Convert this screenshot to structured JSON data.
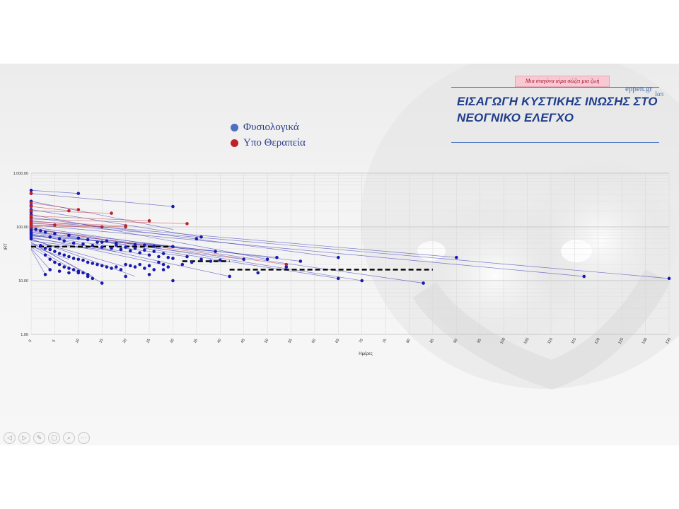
{
  "slide": {
    "tagline": "Μια σταγόνα αίμα σώζει μια ζωή",
    "brand": "eppen.gr",
    "brand_sub": "Ιαπ",
    "title_line1": "ΕΙΣΑΓΩΓΗ ΚΥΣΤΙΚΗΣ ΙΝΩΣΗΣ ΣΤΟ",
    "title_line2": "ΝΕΟΓΝΙΚΟ ΕΛΕΓΧΟ"
  },
  "legend": [
    {
      "label": "Φυσιολογικά",
      "color": "#4b6fc2"
    },
    {
      "label": "Υπο Θεραπεία",
      "color": "#c0202a"
    }
  ],
  "nav": {
    "icons": [
      "back-icon",
      "forward-icon",
      "pen-icon",
      "copy-icon",
      "zoom-icon",
      "more-icon"
    ],
    "glyphs": [
      "◁",
      "▷",
      "✎",
      "▢",
      "⌕",
      "⋯"
    ]
  },
  "chart_data": {
    "type": "scatter",
    "title": "",
    "xlabel": "Ημέρες",
    "ylabel": "IRT",
    "xlim": [
      0,
      135
    ],
    "ylim": [
      1,
      1000
    ],
    "yscale": "log",
    "x_ticks": [
      0,
      5,
      10,
      15,
      20,
      25,
      30,
      35,
      40,
      45,
      50,
      55,
      60,
      65,
      70,
      75,
      80,
      85,
      90,
      95,
      100,
      105,
      110,
      115,
      120,
      125,
      130,
      135
    ],
    "y_ticks": [
      1,
      10,
      100,
      1000
    ],
    "y_tick_labels": [
      "1.00",
      "10.00",
      "100.00",
      "1.000.00"
    ],
    "grid": true,
    "series": [
      {
        "name": "Φυσιολογικά",
        "color": "#1a1ab0",
        "lines": [
          [
            [
              0,
              480
            ],
            [
              10,
              420
            ]
          ],
          [
            [
              0,
              420
            ],
            [
              30,
              240
            ]
          ],
          [
            [
              0,
              300
            ],
            [
              30,
              90
            ]
          ],
          [
            [
              0,
              210
            ],
            [
              36,
              65
            ]
          ],
          [
            [
              0,
              170
            ],
            [
              50,
              25
            ]
          ],
          [
            [
              0,
              150
            ],
            [
              65,
              27
            ]
          ],
          [
            [
              0,
              130
            ],
            [
              90,
              27
            ]
          ],
          [
            [
              0,
              120
            ],
            [
              135,
              11
            ]
          ],
          [
            [
              0,
              110
            ],
            [
              117,
              12
            ]
          ],
          [
            [
              0,
              100
            ],
            [
              83,
              9
            ]
          ],
          [
            [
              0,
              95
            ],
            [
              70,
              10
            ]
          ],
          [
            [
              0,
              90
            ],
            [
              57,
              23
            ]
          ],
          [
            [
              0,
              85
            ],
            [
              65,
              11
            ]
          ],
          [
            [
              0,
              80
            ],
            [
              52,
              27
            ]
          ],
          [
            [
              0,
              78
            ],
            [
              45,
              25
            ]
          ],
          [
            [
              0,
              75
            ],
            [
              42,
              12
            ]
          ],
          [
            [
              0,
              72
            ],
            [
              39,
              35
            ]
          ],
          [
            [
              0,
              70
            ],
            [
              33,
              28
            ]
          ],
          [
            [
              0,
              68
            ],
            [
              30,
              43
            ]
          ],
          [
            [
              0,
              65
            ],
            [
              28,
              20
            ]
          ],
          [
            [
              0,
              62
            ],
            [
              25,
              30
            ]
          ],
          [
            [
              0,
              60
            ],
            [
              22,
              12
            ]
          ],
          [
            [
              0,
              58
            ],
            [
              20,
              18
            ]
          ],
          [
            [
              0,
              55
            ],
            [
              18,
              35
            ]
          ],
          [
            [
              0,
              52
            ],
            [
              15,
              9
            ]
          ],
          [
            [
              0,
              50
            ],
            [
              13,
              12
            ]
          ],
          [
            [
              0,
              48
            ],
            [
              12,
              40
            ]
          ],
          [
            [
              0,
              46
            ],
            [
              10,
              14
            ]
          ],
          [
            [
              0,
              44
            ],
            [
              8,
              25
            ]
          ],
          [
            [
              0,
              42
            ],
            [
              6,
              20
            ]
          ],
          [
            [
              0,
              40
            ],
            [
              4,
              16
            ]
          ],
          [
            [
              0,
              38
            ],
            [
              3,
              13
            ]
          ]
        ],
        "points": [
          [
            0,
            480
          ],
          [
            0,
            420
          ],
          [
            0,
            300
          ],
          [
            0,
            250
          ],
          [
            0,
            210
          ],
          [
            0,
            190
          ],
          [
            0,
            170
          ],
          [
            0,
            150
          ],
          [
            0,
            130
          ],
          [
            0,
            120
          ],
          [
            0,
            110
          ],
          [
            0,
            100
          ],
          [
            0,
            95
          ],
          [
            0,
            90
          ],
          [
            0,
            85
          ],
          [
            0,
            80
          ],
          [
            0,
            75
          ],
          [
            0,
            70
          ],
          [
            0,
            65
          ],
          [
            0,
            60
          ],
          [
            10,
            420
          ],
          [
            30,
            240
          ],
          [
            36,
            65
          ],
          [
            35,
            60
          ],
          [
            1,
            90
          ],
          [
            2,
            85
          ],
          [
            3,
            80
          ],
          [
            4,
            65
          ],
          [
            5,
            75
          ],
          [
            6,
            60
          ],
          [
            7,
            55
          ],
          [
            8,
            70
          ],
          [
            9,
            50
          ],
          [
            10,
            62
          ],
          [
            11,
            48
          ],
          [
            12,
            58
          ],
          [
            13,
            45
          ],
          [
            14,
            52
          ],
          [
            15,
            42
          ],
          [
            16,
            55
          ],
          [
            17,
            40
          ],
          [
            18,
            46
          ],
          [
            19,
            38
          ],
          [
            20,
            42
          ],
          [
            21,
            36
          ],
          [
            22,
            40
          ],
          [
            23,
            33
          ],
          [
            24,
            37
          ],
          [
            25,
            30
          ],
          [
            26,
            35
          ],
          [
            27,
            28
          ],
          [
            28,
            32
          ],
          [
            29,
            27
          ],
          [
            30,
            26
          ],
          [
            2,
            45
          ],
          [
            3,
            40
          ],
          [
            4,
            38
          ],
          [
            5,
            35
          ],
          [
            6,
            32
          ],
          [
            7,
            30
          ],
          [
            8,
            28
          ],
          [
            9,
            26
          ],
          [
            10,
            25
          ],
          [
            11,
            24
          ],
          [
            12,
            22
          ],
          [
            13,
            21
          ],
          [
            14,
            20
          ],
          [
            15,
            19
          ],
          [
            16,
            18
          ],
          [
            17,
            17
          ],
          [
            18,
            18
          ],
          [
            19,
            16
          ],
          [
            20,
            20
          ],
          [
            21,
            19
          ],
          [
            22,
            18
          ],
          [
            23,
            20
          ],
          [
            24,
            17
          ],
          [
            25,
            19
          ],
          [
            26,
            16
          ],
          [
            27,
            22
          ],
          [
            28,
            20
          ],
          [
            29,
            18
          ],
          [
            3,
            30
          ],
          [
            4,
            25
          ],
          [
            5,
            22
          ],
          [
            6,
            20
          ],
          [
            7,
            18
          ],
          [
            8,
            17
          ],
          [
            9,
            16
          ],
          [
            10,
            15
          ],
          [
            11,
            14
          ],
          [
            12,
            13
          ],
          [
            4,
            16
          ],
          [
            3,
            13
          ],
          [
            6,
            15
          ],
          [
            8,
            14
          ],
          [
            10,
            14
          ],
          [
            12,
            12
          ],
          [
            13,
            11
          ],
          [
            15,
            9
          ],
          [
            20,
            12
          ],
          [
            25,
            13
          ],
          [
            30,
            10
          ],
          [
            28,
            16
          ],
          [
            30,
            43
          ],
          [
            33,
            28
          ],
          [
            39,
            35
          ],
          [
            42,
            12
          ],
          [
            45,
            25
          ],
          [
            48,
            14
          ],
          [
            50,
            25
          ],
          [
            52,
            27
          ],
          [
            57,
            23
          ],
          [
            54,
            18
          ],
          [
            65,
            27
          ],
          [
            65,
            11
          ],
          [
            70,
            10
          ],
          [
            83,
            9
          ],
          [
            90,
            27
          ],
          [
            117,
            12
          ],
          [
            135,
            11
          ],
          [
            32,
            20
          ],
          [
            34,
            22
          ],
          [
            36,
            25
          ],
          [
            38,
            23
          ],
          [
            40,
            24
          ],
          [
            26,
            44
          ],
          [
            24,
            46
          ],
          [
            22,
            47
          ],
          [
            18,
            50
          ],
          [
            15,
            52
          ]
        ]
      },
      {
        "name": "Υπο Θεραπεία",
        "color": "#c0202a",
        "lines": [
          [
            [
              0,
              280
            ],
            [
              10,
              210
            ]
          ],
          [
            [
              0,
              240
            ],
            [
              8,
              200
            ]
          ],
          [
            [
              0,
              200
            ],
            [
              17,
              180
            ]
          ],
          [
            [
              0,
              160
            ],
            [
              25,
              130
            ]
          ],
          [
            [
              0,
              140
            ],
            [
              33,
              115
            ]
          ],
          [
            [
              0,
              125
            ],
            [
              20,
              105
            ]
          ],
          [
            [
              0,
              115
            ],
            [
              20,
              100
            ]
          ],
          [
            [
              0,
              105
            ],
            [
              15,
              100
            ]
          ],
          [
            [
              0,
              100
            ],
            [
              5,
              108
            ]
          ],
          [
            [
              0,
              90
            ],
            [
              54,
              20
            ]
          ]
        ],
        "points": [
          [
            0,
            420
          ],
          [
            0,
            280
          ],
          [
            0,
            240
          ],
          [
            0,
            200
          ],
          [
            0,
            160
          ],
          [
            0,
            140
          ],
          [
            0,
            125
          ],
          [
            0,
            115
          ],
          [
            0,
            105
          ],
          [
            0,
            100
          ],
          [
            10,
            210
          ],
          [
            8,
            200
          ],
          [
            17,
            180
          ],
          [
            25,
            130
          ],
          [
            33,
            115
          ],
          [
            20,
            105
          ],
          [
            20,
            100
          ],
          [
            15,
            100
          ],
          [
            5,
            108
          ],
          [
            54,
            20
          ]
        ]
      }
    ],
    "threshold_segments": [
      {
        "x": [
          0,
          30
        ],
        "y": 43
      },
      {
        "x": [
          32,
          42
        ],
        "y": 23
      },
      {
        "x": [
          42,
          85
        ],
        "y": 16
      }
    ]
  }
}
